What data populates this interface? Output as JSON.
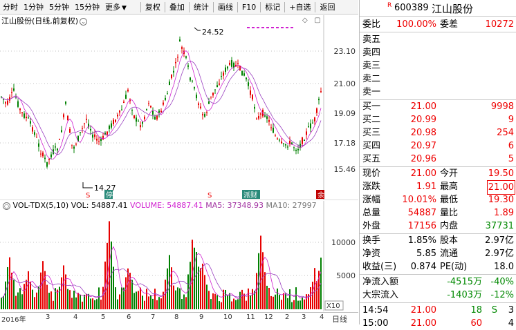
{
  "toolbar": {
    "items": [
      "分时",
      "1分钟",
      "5分钟",
      "15分钟",
      "更多"
    ],
    "more_arrow": "▼",
    "buttons": [
      "复权",
      "叠加",
      "统计",
      "画线",
      "F10",
      "标记",
      "+自选",
      "返回"
    ]
  },
  "chart": {
    "title": "江山股份(日线,前复权)",
    "settings_icon": "chevron-down-circle-icon",
    "y_ticks": [
      "23.10",
      "21.00",
      "19.09",
      "17.18",
      "15.46"
    ],
    "high_label": "24.52",
    "low_label": "14.27",
    "markers": [
      "S",
      "停",
      "S",
      "派财",
      "余"
    ],
    "colors": {
      "up": "#e60000",
      "down": "#008000",
      "ma5": "#d020d0",
      "ma10": "#9a40c0",
      "grid": "#c0c0c0"
    }
  },
  "volume": {
    "title_prefix": "VOL-TDX(5,10)",
    "vol_label": "VOL: 54887.41",
    "volume_label": "VOLUME: 54887.41",
    "ma5_label": "MA5: 37348.93",
    "ma10_label": "MA10: 27997",
    "y_ticks": [
      "10000",
      "5000"
    ],
    "unit": "X10"
  },
  "xaxis": {
    "labels": [
      "2016年",
      "3",
      "4",
      "5",
      "6",
      "7",
      "8",
      "9",
      "10",
      "11",
      "12",
      "2",
      "3",
      "4"
    ],
    "day_button": "日线"
  },
  "stock": {
    "code": "600389",
    "name": "江山股份",
    "r_mark": "R"
  },
  "committee": {
    "ratio_label": "委比",
    "ratio": "100.00%",
    "diff_label": "委差",
    "diff": "10272"
  },
  "sell": [
    {
      "label": "卖五",
      "price": "",
      "vol": ""
    },
    {
      "label": "卖四",
      "price": "",
      "vol": ""
    },
    {
      "label": "卖三",
      "price": "",
      "vol": ""
    },
    {
      "label": "卖二",
      "price": "",
      "vol": ""
    },
    {
      "label": "卖一",
      "price": "",
      "vol": ""
    }
  ],
  "buy": [
    {
      "label": "买一",
      "price": "21.00",
      "vol": "9998"
    },
    {
      "label": "买二",
      "price": "20.99",
      "vol": "9"
    },
    {
      "label": "买三",
      "price": "20.98",
      "vol": "254"
    },
    {
      "label": "买四",
      "price": "20.97",
      "vol": "6"
    },
    {
      "label": "买五",
      "price": "20.96",
      "vol": "5"
    }
  ],
  "quote": [
    {
      "l": "现价",
      "v": "21.00",
      "l2": "今开",
      "v2": "19.50"
    },
    {
      "l": "涨跌",
      "v": "1.91",
      "l2": "最高",
      "v2": "21.00"
    },
    {
      "l": "涨幅",
      "v": "10.01%",
      "l2": "最低",
      "v2": "19.30"
    },
    {
      "l": "总量",
      "v": "54887",
      "l2": "量比",
      "v2": "1.89"
    },
    {
      "l": "外盘",
      "v": "17156",
      "l2": "内盘",
      "v2": "37731"
    }
  ],
  "stats": [
    {
      "l": "换手",
      "v": "1.85%",
      "l2": "股本",
      "v2": "2.97亿"
    },
    {
      "l": "净资",
      "v": "5.85",
      "l2": "流通",
      "v2": "2.97亿"
    },
    {
      "l": "收益(三)",
      "v": "0.874",
      "l2": "PE(动)",
      "v2": "18.0"
    }
  ],
  "flows": [
    {
      "l": "净流入额",
      "v": "-4515万",
      "p": "-40%"
    },
    {
      "l": "大宗流入",
      "v": "-1403万",
      "p": "-12%"
    }
  ],
  "ticks": [
    {
      "t": "14:54",
      "p": "21.00",
      "v": "18",
      "s": "S",
      "n": "3"
    },
    {
      "t": "15:00",
      "p": "21.00",
      "v": "60",
      "s": "",
      "n": "4"
    }
  ]
}
